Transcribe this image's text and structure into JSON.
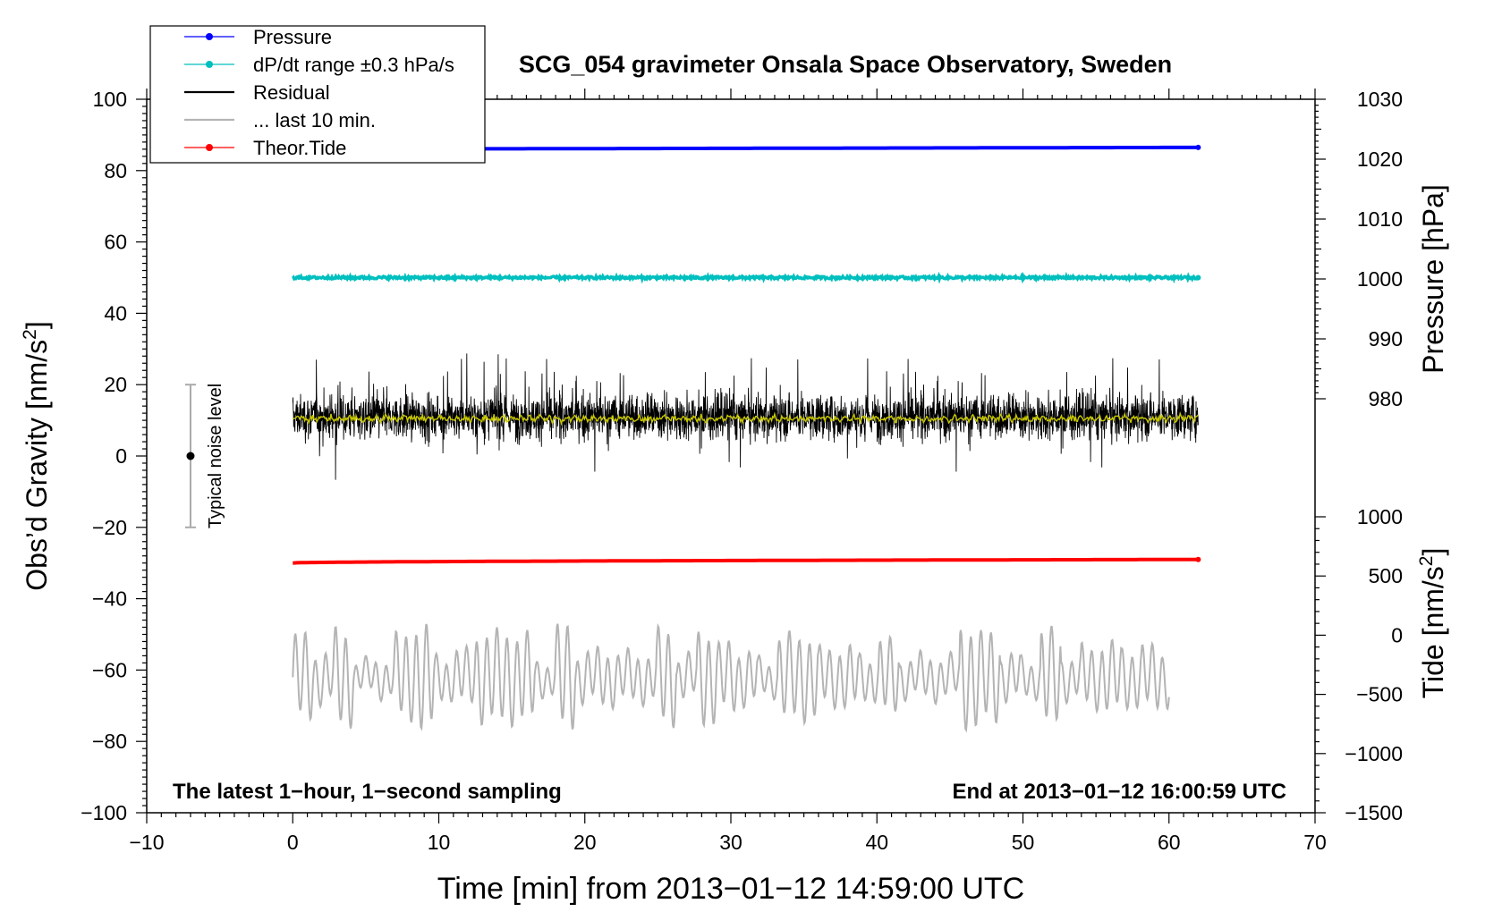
{
  "chart_data": {
    "type": "line",
    "title": "SCG_054 gravimeter Onsala Space Observatory, Sweden",
    "xlabel": "Time [min] from 2013−01−12 14:59:00 UTC",
    "ylabel_left": "Obs’d Gravity [nm/s²]",
    "ylabel_left_main": "Obs’d Gravity [nm/s",
    "ylabel_left_sup": "2",
    "ylabel_left_close": "]",
    "ylabel_right_pressure": "Pressure [hPa]",
    "ylabel_right_tide_main": "Tide [nm/s",
    "ylabel_right_tide_sup": "2",
    "ylabel_right_tide_close": "]",
    "xlim": [
      -10,
      70
    ],
    "ylim": [
      -100,
      100
    ],
    "x_ticks": [
      "−10",
      "0",
      "10",
      "20",
      "30",
      "40",
      "50",
      "60",
      "70"
    ],
    "y_ticks_left": [
      "100",
      "80",
      "60",
      "40",
      "20",
      "0",
      "−20",
      "−40",
      "−60",
      "−80",
      "−100"
    ],
    "pressure_ticks": [
      "1030",
      "1020",
      "1010",
      "1000",
      "990",
      "980"
    ],
    "pressure_range": [
      970,
      1030
    ],
    "tide_ticks": [
      "1000",
      "500",
      "0",
      "−500",
      "−1000",
      "−1500"
    ],
    "tide_range": [
      -1500,
      1000
    ],
    "annotation_left": "The latest 1−hour, 1−second sampling",
    "annotation_right": "End at 2013−01−12 16:00:59 UTC",
    "noise_label": "Typical noise level",
    "noise_bar": {
      "x": -7,
      "center": 0,
      "half_range": 20
    },
    "legend": [
      {
        "label": "Pressure",
        "color": "#0000ff",
        "marker": true
      },
      {
        "label": "dP/dt range ±0.3 hPa/s",
        "color": "#00bfbf",
        "marker": true
      },
      {
        "label": "Residual",
        "color": "#000000",
        "marker": false
      },
      {
        "label": "... last 10 min.",
        "color": "#b4b4b4",
        "marker": false
      },
      {
        "label": "Theor.Tide",
        "color": "#ff0000",
        "marker": true
      }
    ],
    "series": [
      {
        "name": "Pressure",
        "color": "#0000ff",
        "x_range": [
          0,
          62
        ],
        "left_axis_start": 86,
        "left_axis_end": 86.5
      },
      {
        "name": "dP/dt range ±0.3 hPa/s",
        "color": "#00bfbf",
        "x_range": [
          0,
          62
        ],
        "left_axis_value": 50
      },
      {
        "name": "Residual",
        "color": "#000000",
        "x_range": [
          0,
          62
        ],
        "mean": 11,
        "amplitude_min": -16,
        "amplitude_max": 31
      },
      {
        "name": "Residual (smoothed)",
        "color": "#c8c800",
        "x_range": [
          0,
          62
        ],
        "mean": 10.5
      },
      {
        "name": "Theor.Tide",
        "color": "#ff0000",
        "x_range": [
          0,
          62
        ],
        "left_axis_start": -30,
        "left_axis_end": -29
      },
      {
        "name": "... last 10 min.",
        "color": "#b4b4b4",
        "x_range": [
          0,
          60
        ],
        "mean": -62,
        "min": -80,
        "max": -42
      }
    ]
  }
}
